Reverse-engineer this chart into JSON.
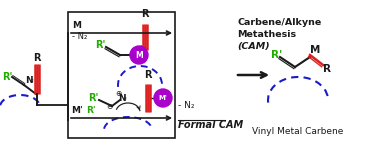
{
  "bg_color": "#ffffff",
  "green_color": "#22aa00",
  "red_color": "#dd2020",
  "purple_color": "#aa00cc",
  "blue_color": "#1a1acc",
  "black_color": "#1a1a1a",
  "title_line1": "Carbene/Alkyne",
  "title_line2": "Metathesis",
  "title_cam": "(CAM)",
  "formal_cam": "Formal CAM",
  "vinyl_label": "Vinyl Metal Carbene",
  "figw": 3.78,
  "figh": 1.54,
  "dpi": 100
}
